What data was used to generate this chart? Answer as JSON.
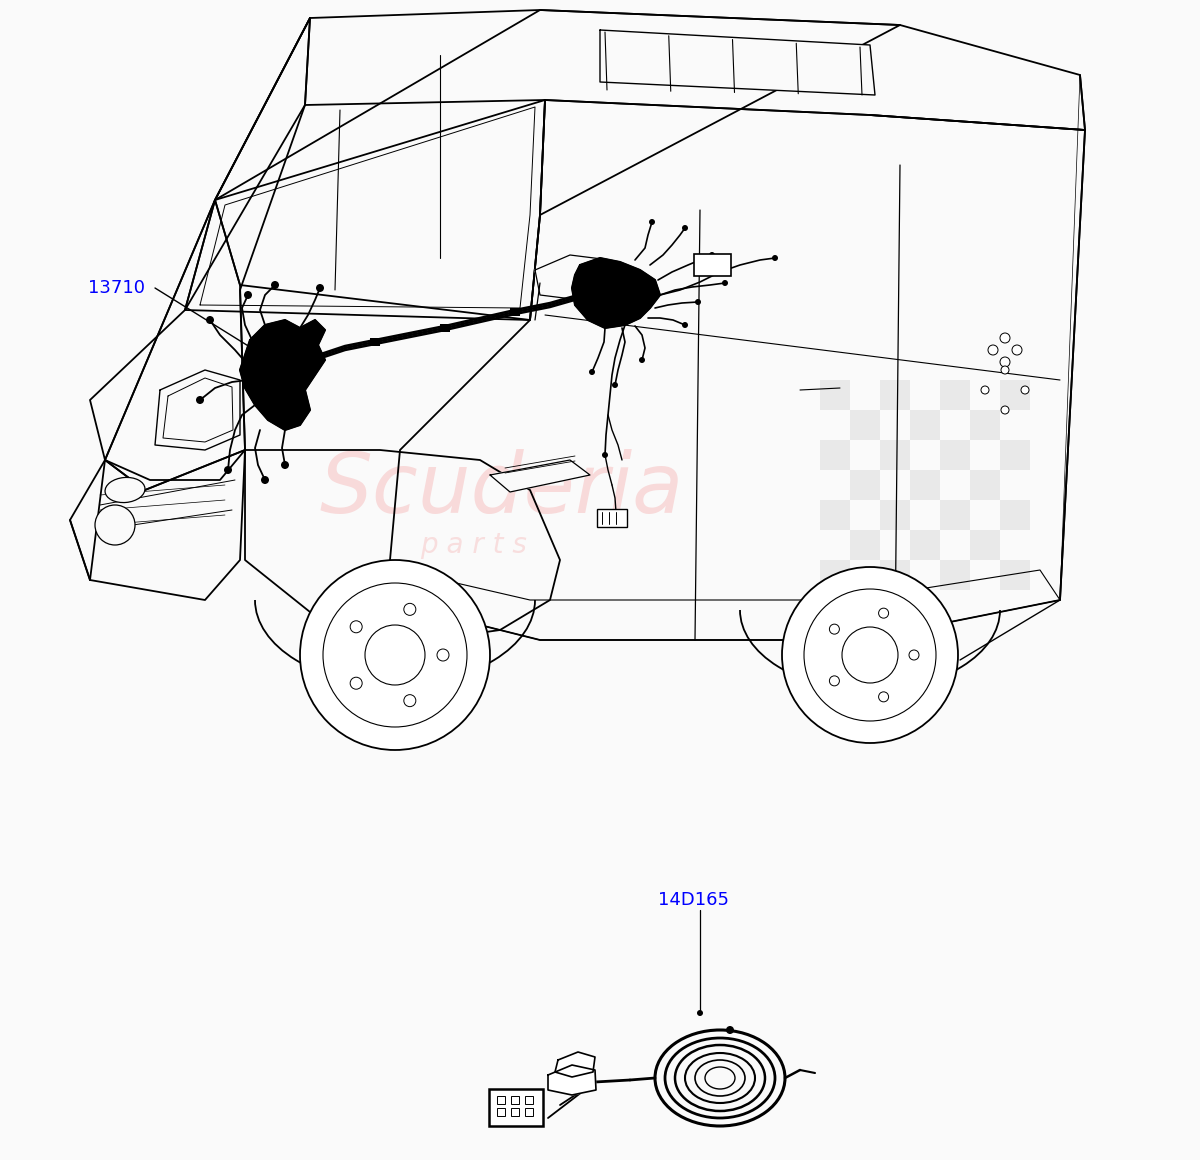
{
  "background_color": "#FAFAFA",
  "label_13710": "13710",
  "label_14D165": "14D165",
  "label_color": "#0000FF",
  "line_color": "#000000",
  "fig_width": 12.0,
  "fig_height": 11.6
}
